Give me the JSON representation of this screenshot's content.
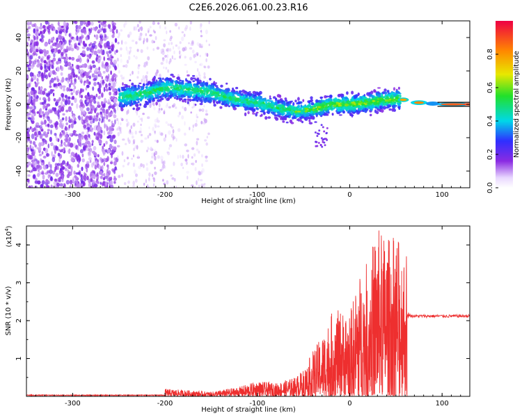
{
  "title": "C2E6.2026.061.00.23.R16",
  "colors": {
    "snr_line": "#ee2f2f",
    "axis": "#000000",
    "background": "#ffffff"
  },
  "chart_data": [
    {
      "type": "heatmap",
      "name": "spectrogram",
      "title": "C2E6.2026.061.00.23.R16",
      "xlabel": "Height of straight line (km)",
      "ylabel": "Frequency (Hz)",
      "xlim": [
        -350,
        130
      ],
      "ylim": [
        -50,
        50
      ],
      "xticks": [
        -300,
        -200,
        -100,
        0,
        100
      ],
      "yticks": [
        -40,
        -20,
        0,
        20,
        40
      ],
      "xtick_labels": [
        "-300",
        "-200",
        "-100",
        "0",
        "100"
      ],
      "ytick_labels": [
        "-40",
        "-20",
        "0",
        "20",
        "40"
      ],
      "center_track": [
        {
          "x": -250,
          "y": 4
        },
        {
          "x": -225,
          "y": 6
        },
        {
          "x": -200,
          "y": 10
        },
        {
          "x": -175,
          "y": 9
        },
        {
          "x": -150,
          "y": 7
        },
        {
          "x": -125,
          "y": 3
        },
        {
          "x": -100,
          "y": 1
        },
        {
          "x": -80,
          "y": -2
        },
        {
          "x": -60,
          "y": -4
        },
        {
          "x": -40,
          "y": -3
        },
        {
          "x": -20,
          "y": 0
        },
        {
          "x": 0,
          "y": 0
        },
        {
          "x": 20,
          "y": 1
        },
        {
          "x": 40,
          "y": 3
        },
        {
          "x": 55,
          "y": 3
        },
        {
          "x": 75,
          "y": 1
        },
        {
          "x": 100,
          "y": 0
        },
        {
          "x": 130,
          "y": 0
        }
      ],
      "colorbar": {
        "label": "Normalized spectral amplitude",
        "range": [
          0,
          1
        ],
        "ticks": [
          0.0,
          0.2,
          0.4,
          0.6,
          0.8
        ],
        "tick_labels": [
          "0.0",
          "0.2",
          "0.4",
          "0.6",
          "0.8"
        ]
      }
    },
    {
      "type": "line",
      "name": "snr",
      "title": "",
      "xlabel": "Height of straight line (km)",
      "ylabel": "SNR (10 * v/v)",
      "multiplier_label": "(x10",
      "multiplier_exponent": "4",
      "multiplier_close": ")",
      "xlim": [
        -350,
        130
      ],
      "ylim": [
        0,
        4.5
      ],
      "xticks": [
        -300,
        -200,
        -100,
        0,
        100
      ],
      "yticks": [
        1,
        2,
        3,
        4
      ],
      "xtick_labels": [
        "-300",
        "-200",
        "-100",
        "0",
        "100"
      ],
      "ytick_labels": [
        "1",
        "2",
        "3",
        "4"
      ],
      "envelope": {
        "x": [
          -350,
          -300,
          -250,
          -200,
          -150,
          -120,
          -100,
          -80,
          -60,
          -50,
          -40,
          -30,
          -20,
          -10,
          0,
          10,
          20,
          30,
          40,
          50,
          55,
          60
        ],
        "upper": [
          0.02,
          0.03,
          0.05,
          0.2,
          0.12,
          0.25,
          0.4,
          0.35,
          0.5,
          0.7,
          1.2,
          1.6,
          2.2,
          2.3,
          2.2,
          3.2,
          3.6,
          4.5,
          4.2,
          4.3,
          4.1,
          3.9
        ],
        "lower": [
          0.0,
          0.0,
          0.0,
          0.0,
          0.0,
          0.0,
          0.0,
          0.0,
          0.0,
          0.0,
          0.0,
          0.0,
          0.0,
          0.0,
          0.0,
          0.0,
          0.0,
          0.0,
          0.0,
          0.0,
          0.0,
          0.0
        ]
      },
      "plateau": {
        "x_start": 62,
        "x_end": 130,
        "value": 2.12
      }
    }
  ]
}
